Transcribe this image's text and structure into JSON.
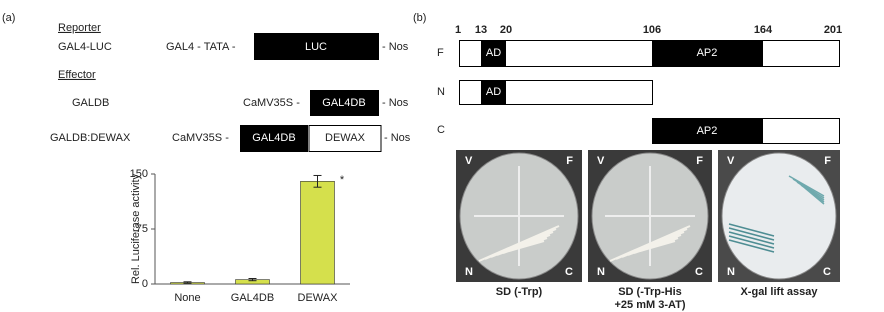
{
  "panel_a": {
    "label": "(a)",
    "reporter": {
      "heading": "Reporter",
      "name": "GAL4-LUC",
      "promoter": "GAL4 - TATA -",
      "box": "LUC",
      "terminator": "- Nos"
    },
    "effector": {
      "heading": "Effector",
      "constructs": [
        {
          "name": "GALDB",
          "promoter": "CaMV35S -",
          "boxes": [
            "GAL4DB"
          ],
          "terminator": "- Nos"
        },
        {
          "name": "GALDB:DEWAX",
          "promoter": "CaMV35S -",
          "boxes": [
            "GAL4DB",
            "DEWAX"
          ],
          "terminator": "- Nos"
        }
      ]
    }
  },
  "chart_data": {
    "type": "bar",
    "y_label": "Rel. Luciferase activity",
    "categories": [
      "None",
      "GAL4DB",
      "DEWAX"
    ],
    "values": [
      2,
      6,
      140
    ],
    "errors": [
      1,
      1.5,
      8
    ],
    "color": "#d5e04c",
    "ylim": [
      0,
      150
    ],
    "yticks": [
      0,
      75,
      150
    ],
    "annotation": "*"
  },
  "panel_b": {
    "label": "(b)",
    "positions": [
      1,
      13,
      20,
      106,
      164,
      201
    ],
    "rows": [
      {
        "label": "F",
        "domains": [
          "AD",
          "AP2"
        ]
      },
      {
        "label": "N",
        "domains": [
          "AD"
        ]
      },
      {
        "label": "C",
        "domains": [
          "AP2"
        ]
      }
    ],
    "plates": [
      {
        "corners": [
          "V",
          "F",
          "N",
          "C"
        ],
        "caption": [
          "SD (-Trp)"
        ]
      },
      {
        "corners": [
          "V",
          "F",
          "N",
          "C"
        ],
        "caption": [
          "SD (-Trp-His",
          "+25 mM 3-AT)"
        ]
      },
      {
        "corners": [
          "V",
          "F",
          "N",
          "C"
        ],
        "caption": [
          "X-gal lift assay"
        ]
      }
    ]
  }
}
